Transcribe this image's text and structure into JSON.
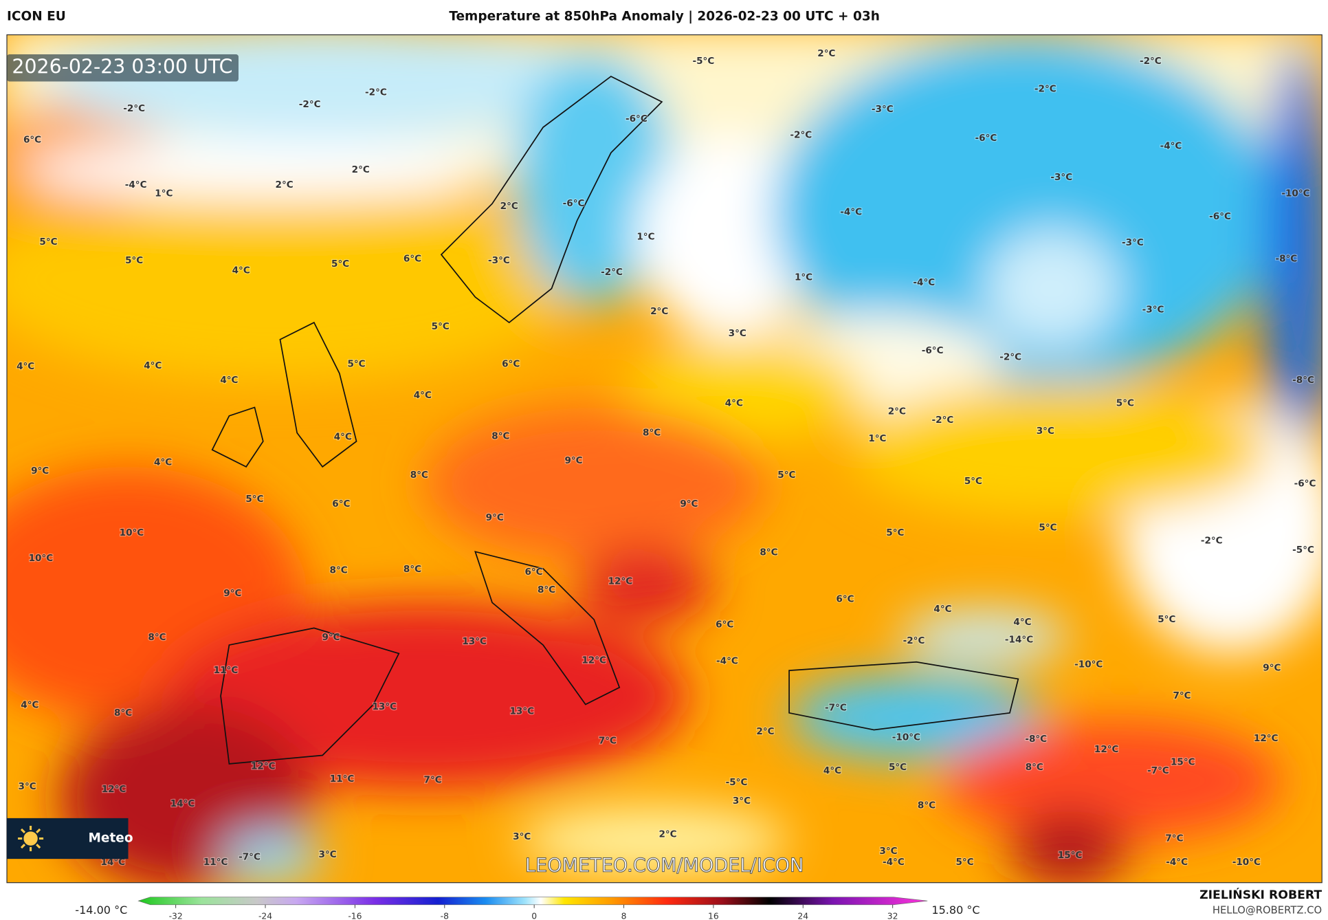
{
  "header": {
    "model": "ICON EU",
    "title": "Temperature at 850hPa Anomaly | 2026-02-23 00 UTC + 03h"
  },
  "timestamp": "2026-02-23 03:00 UTC",
  "labels": [
    "-2°C",
    "-2°C",
    "-2°C",
    "6°C",
    "-4°C",
    "1°C",
    "2°C",
    "2°C",
    "5°C",
    "5°C",
    "4°C",
    "5°C",
    "6°C",
    "2°C",
    "-3°C",
    "-6°C",
    "-6°C",
    "-5°C",
    "2°C",
    "-3°C",
    "-2°C",
    "-2°C",
    "-2°C",
    "-6°C",
    "-4°C",
    "-3°C",
    "-10°C",
    "-6°C",
    "-4°C",
    "1°C",
    "-2°C",
    "1°C",
    "-4°C",
    "-3°C",
    "-8°C",
    "2°C",
    "-3°C",
    "3°C",
    "-6°C",
    "-2°C",
    "-8°C",
    "5°C",
    "4°C",
    "4°C",
    "4°C",
    "5°C",
    "4°C",
    "6°C",
    "4°C",
    "2°C",
    "-2°C",
    "5°C",
    "3°C",
    "4°C",
    "4°C",
    "8°C",
    "8°C",
    "1°C",
    "9°C",
    "8°C",
    "9°C",
    "5°C",
    "5°C",
    "-6°C",
    "5°C",
    "6°C",
    "9°C",
    "9°C",
    "10°C",
    "10°C",
    "5°C",
    "5°C",
    "-2°C",
    "-5°C",
    "8°C",
    "8°C",
    "6°C",
    "12°C",
    "8°C",
    "8°C",
    "9°C",
    "6°C",
    "4°C",
    "5°C",
    "4°C",
    "8°C",
    "9°C",
    "13°C",
    "6°C",
    "-14°C",
    "-2°C",
    "-10°C",
    "12°C",
    "-4°C",
    "9°C",
    "11°C",
    "7°C",
    "4°C",
    "8°C",
    "13°C",
    "13°C",
    "-7°C",
    "-10°C",
    "-8°C",
    "12°C",
    "7°C",
    "2°C",
    "12°C",
    "15°C",
    "-7°C",
    "8°C",
    "12°C",
    "11°C",
    "7°C",
    "4°C",
    "5°C",
    "-5°C",
    "3°C",
    "12°C",
    "14°C",
    "3°C",
    "8°C",
    "2°C",
    "3°C",
    "7°C",
    "3°C",
    "-7°C",
    "14°C",
    "11°C",
    "3°C",
    "15°C",
    "5°C",
    "-4°C",
    "-10°C",
    "-4°C"
  ],
  "watermark": "LEOMETEO.COM/MODEL/ICON",
  "logo": "Meteo",
  "colorbar": {
    "min_label": "-14.00 °C",
    "max_label": "15.80 °C",
    "ticks": [
      -32,
      -24,
      -16,
      -8,
      0,
      8,
      16,
      24,
      32
    ]
  },
  "credits": {
    "author": "ZIELIŃSKI ROBERT",
    "contact": "HELLO@ROBERTZ.CO"
  }
}
